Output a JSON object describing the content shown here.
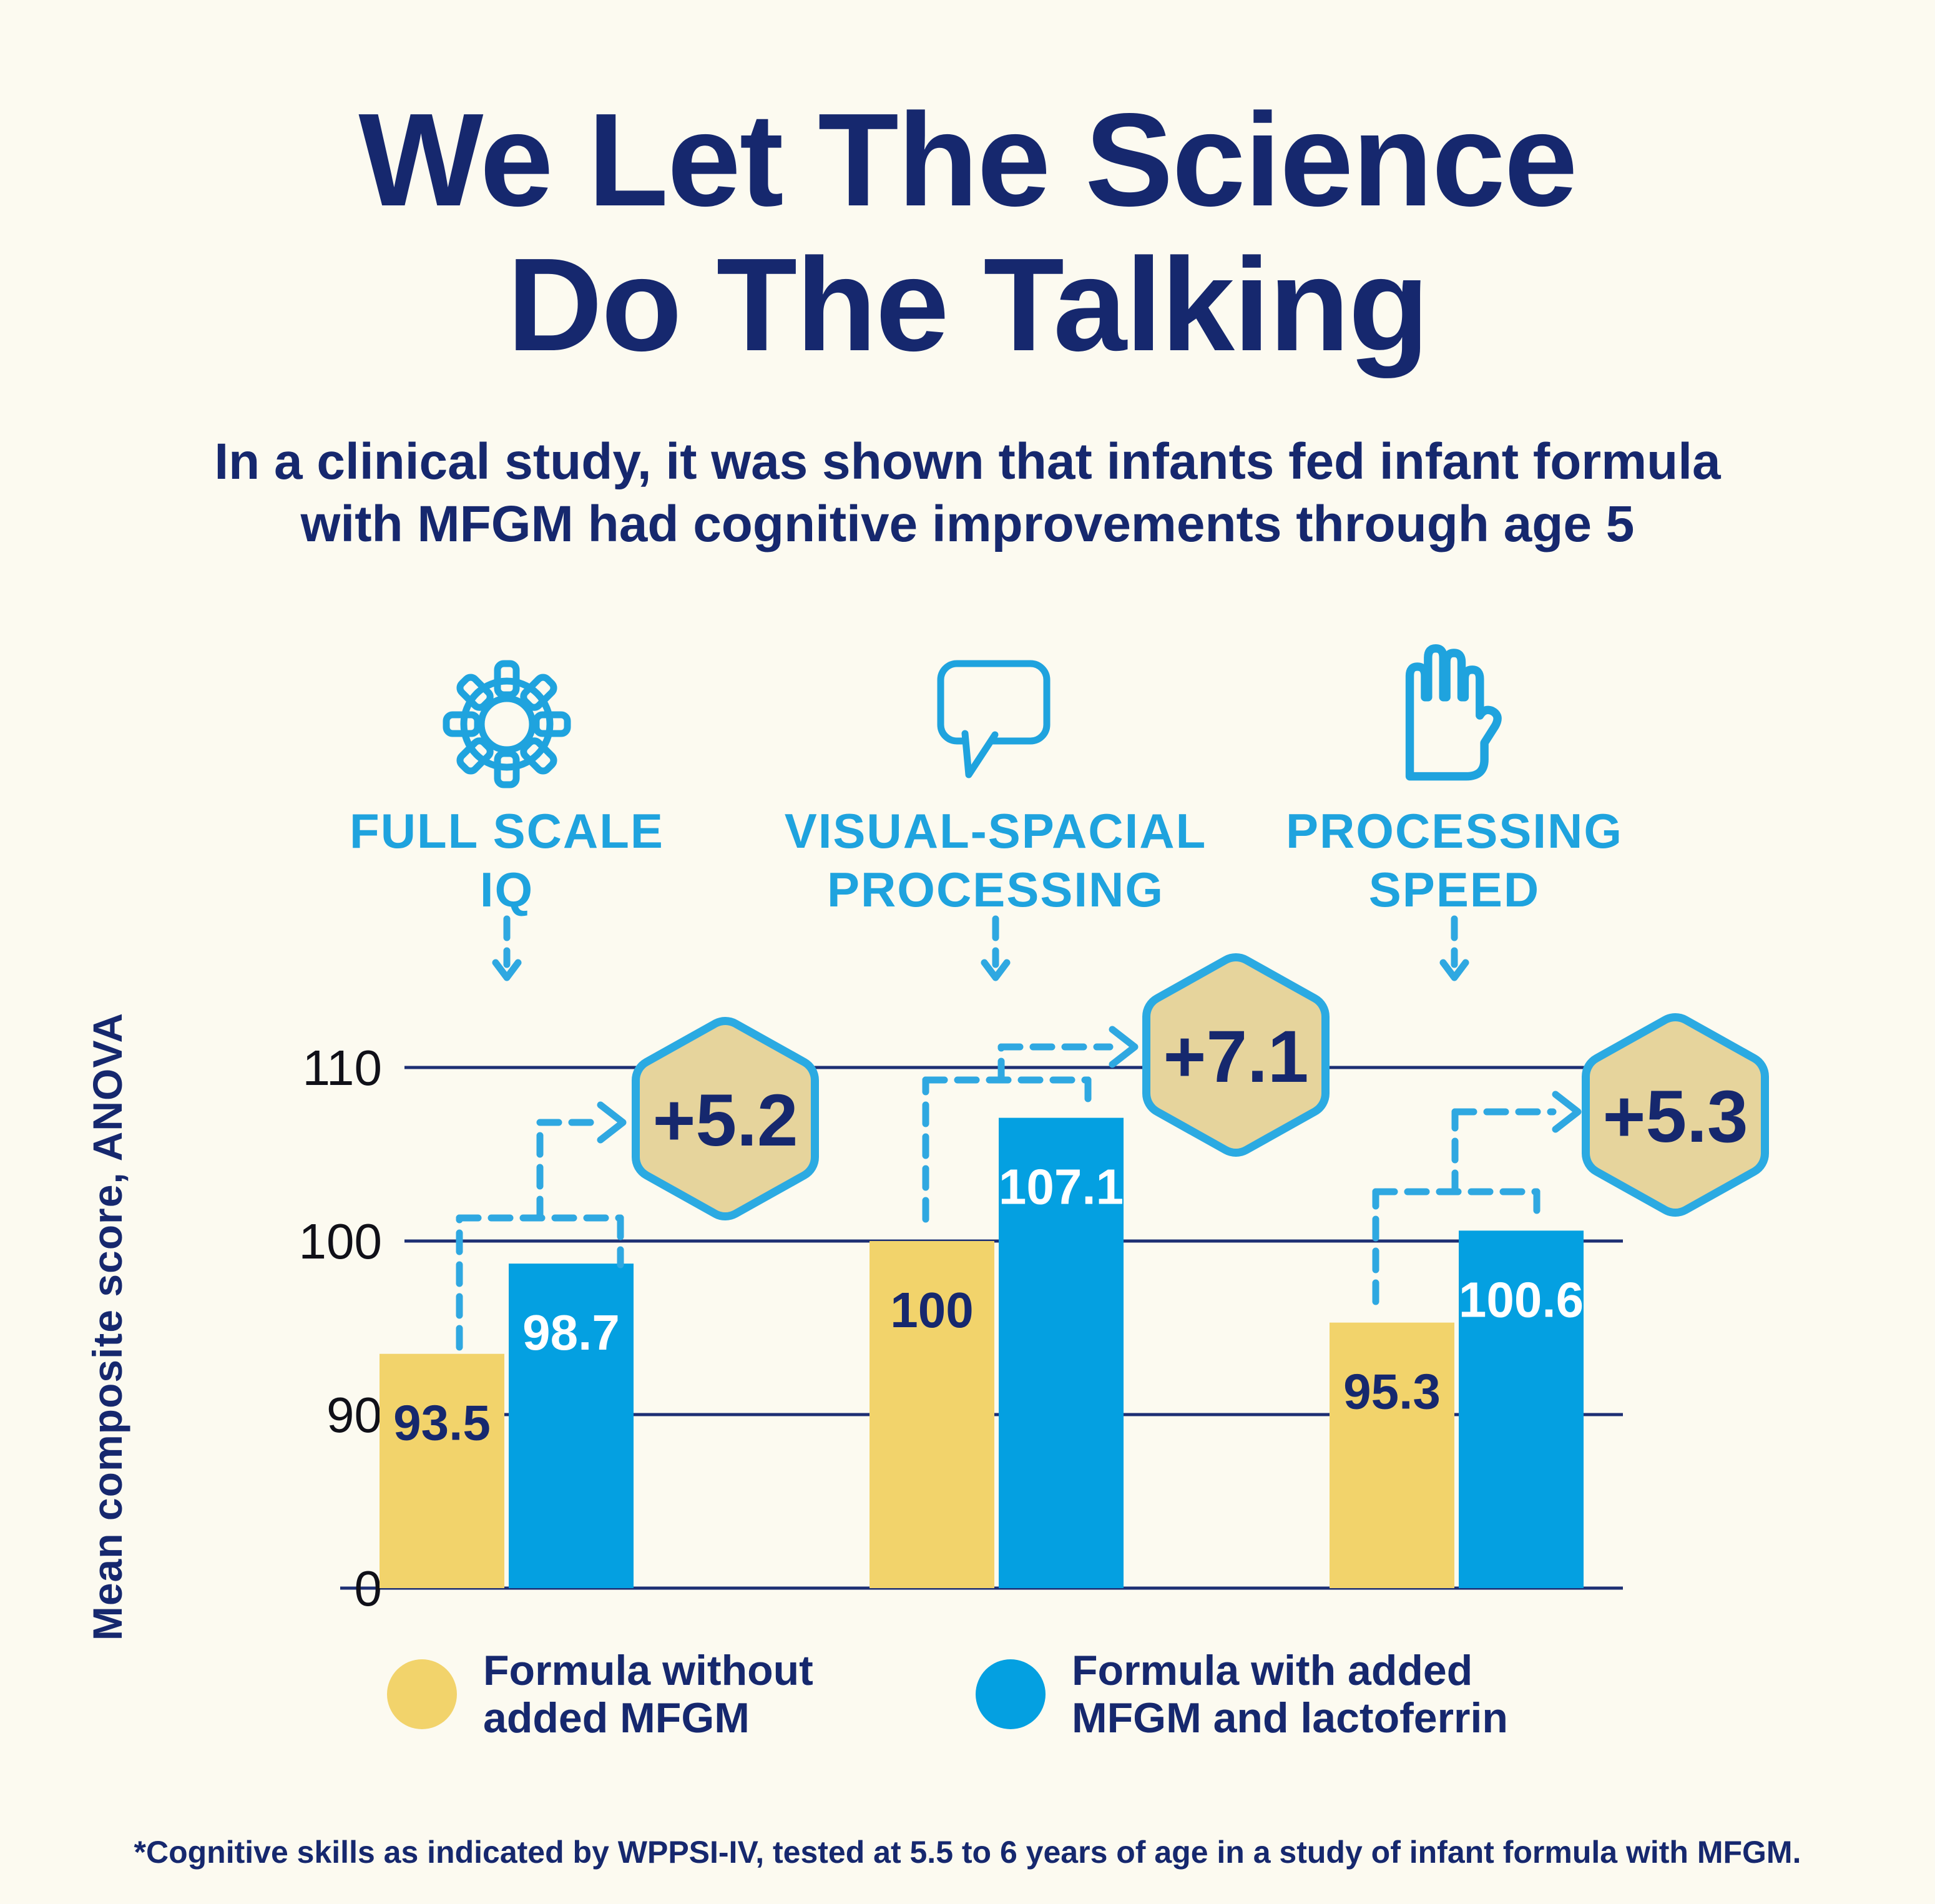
{
  "page": {
    "background": "#FCFAF0"
  },
  "title": {
    "line1": "We Let The Science",
    "line2": "Do The Talking"
  },
  "subtitle": {
    "line1": "In a clinical study, it was shown that infants fed infant formula",
    "line2": "with MFGM had cognitive improvements through age 5"
  },
  "categories": [
    {
      "icon": "gear-icon",
      "label_line1": "FULL SCALE",
      "label_line2": "IQ"
    },
    {
      "icon": "speech-bubble-icon",
      "label_line1": "VISUAL-SPACIAL",
      "label_line2": "PROCESSING"
    },
    {
      "icon": "hand-icon",
      "label_line1": "PROCESSING",
      "label_line2": "SPEED"
    }
  ],
  "chart_data": {
    "type": "bar",
    "title": "",
    "ylabel": "Mean composite score, ANOVA",
    "ytick_labels": [
      "110",
      "100",
      "90",
      "0"
    ],
    "yticks": [
      110,
      100,
      90,
      0
    ],
    "broken_axis": true,
    "grid": true,
    "legend_position": "bottom",
    "categories": [
      "Full Scale IQ",
      "Visual-Spacial Processing",
      "Processing Speed"
    ],
    "series": [
      {
        "name": "Formula without added MFGM",
        "color": "#F2D36B",
        "values": [
          93.5,
          100,
          95.3
        ]
      },
      {
        "name": "Formula with added MFGM and lactoferrin",
        "color": "#04A0E1",
        "values": [
          98.7,
          107.1,
          100.6
        ]
      }
    ],
    "differences": [
      "+5.2",
      "+7.1",
      "+5.3"
    ]
  },
  "legend": {
    "items": [
      {
        "swatch_color": "#F2D36B",
        "line1": "Formula without",
        "line2": "added MFGM"
      },
      {
        "swatch_color": "#04A0E1",
        "line1": "Formula with added",
        "line2": "MFGM and lactoferrin"
      }
    ]
  },
  "footnote": "*Cognitive skills as indicated by WPPSI-IV, tested at 5.5 to 6 years of age in a study of infant formula with MFGM.",
  "colors": {
    "navy": "#16286E",
    "light_blue": "#1FA3DE",
    "dash_blue": "#2FA8E1",
    "badge_tan": "#E6D49C",
    "badge_border": "#2BAAE2",
    "grid_navy": "#1D2F73",
    "yellow_bar": "#F2D36B",
    "blue_bar": "#04A0E1"
  }
}
